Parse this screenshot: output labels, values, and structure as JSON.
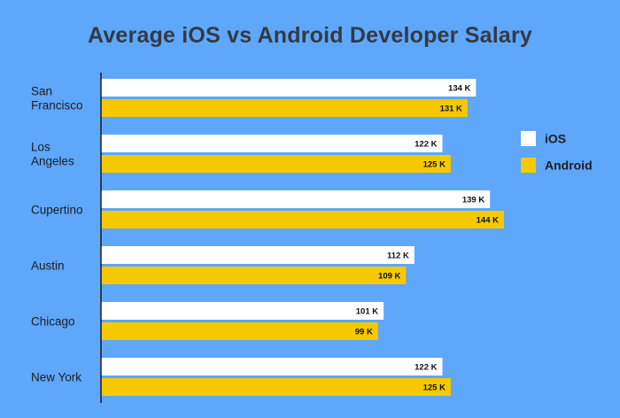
{
  "chart_data": {
    "type": "bar",
    "orientation": "horizontal",
    "title": "Average iOS vs Android Developer Salary",
    "categories": [
      [
        "San",
        "Francisco"
      ],
      [
        "Los",
        "Angeles"
      ],
      [
        "Cupertino"
      ],
      [
        "Austin"
      ],
      [
        "Chicago"
      ],
      [
        "New York"
      ]
    ],
    "series": [
      {
        "name": "iOS",
        "color": "#ffffff",
        "values": [
          134,
          122,
          139,
          112,
          101,
          122
        ],
        "labels": [
          "134 K",
          "122 K",
          "139 K",
          "112 K",
          "101 K",
          "122 K"
        ]
      },
      {
        "name": "Android",
        "color": "#f6c800",
        "values": [
          131,
          125,
          144,
          109,
          99,
          125
        ],
        "labels": [
          "131 K",
          "125 K",
          "144 K",
          "109 K",
          "99 K",
          "125 K"
        ]
      }
    ],
    "value_unit": "K",
    "xlim": [
      0,
      150
    ],
    "legend": {
      "position": "right",
      "entries": [
        "iOS",
        "Android"
      ]
    },
    "grid": false
  }
}
